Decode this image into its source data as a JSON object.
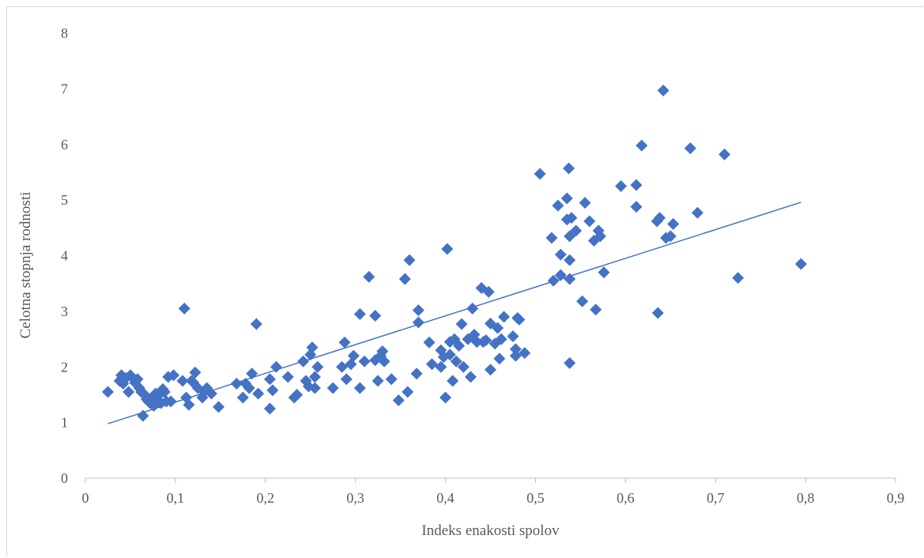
{
  "chart_data": {
    "type": "scatter",
    "title": "",
    "xlabel": "Indeks enakosti spolov",
    "ylabel": "Celotna stopnja rodnosti",
    "xlim": [
      0,
      0.9
    ],
    "ylim": [
      0,
      8
    ],
    "x_ticks": [
      "0",
      "0,1",
      "0,2",
      "0,3",
      "0,4",
      "0,5",
      "0,6",
      "0,7",
      "0,8",
      "0,9"
    ],
    "y_ticks": [
      "0",
      "1",
      "2",
      "3",
      "4",
      "5",
      "6",
      "7",
      "8"
    ],
    "grid": false,
    "legend": "none",
    "marker": "diamond",
    "marker_color": "#4472C4",
    "trendline": {
      "type": "linear",
      "color": "#4472C4",
      "from": [
        0.025,
        0.98
      ],
      "to": [
        0.795,
        4.96
      ]
    },
    "points": [
      [
        0.025,
        1.55
      ],
      [
        0.038,
        1.75
      ],
      [
        0.04,
        1.85
      ],
      [
        0.042,
        1.7
      ],
      [
        0.045,
        1.8
      ],
      [
        0.048,
        1.55
      ],
      [
        0.05,
        1.85
      ],
      [
        0.055,
        1.72
      ],
      [
        0.058,
        1.78
      ],
      [
        0.06,
        1.62
      ],
      [
        0.062,
        1.55
      ],
      [
        0.064,
        1.12
      ],
      [
        0.066,
        1.5
      ],
      [
        0.068,
        1.42
      ],
      [
        0.07,
        1.38
      ],
      [
        0.072,
        1.35
      ],
      [
        0.074,
        1.45
      ],
      [
        0.076,
        1.3
      ],
      [
        0.078,
        1.52
      ],
      [
        0.08,
        1.42
      ],
      [
        0.082,
        1.5
      ],
      [
        0.084,
        1.35
      ],
      [
        0.086,
        1.6
      ],
      [
        0.088,
        1.55
      ],
      [
        0.09,
        1.38
      ],
      [
        0.092,
        1.82
      ],
      [
        0.095,
        1.38
      ],
      [
        0.098,
        1.85
      ],
      [
        0.108,
        1.75
      ],
      [
        0.11,
        3.05
      ],
      [
        0.112,
        1.45
      ],
      [
        0.115,
        1.32
      ],
      [
        0.118,
        1.75
      ],
      [
        0.12,
        1.72
      ],
      [
        0.122,
        1.9
      ],
      [
        0.125,
        1.62
      ],
      [
        0.13,
        1.45
      ],
      [
        0.132,
        1.55
      ],
      [
        0.135,
        1.62
      ],
      [
        0.14,
        1.52
      ],
      [
        0.148,
        1.28
      ],
      [
        0.168,
        1.7
      ],
      [
        0.175,
        1.45
      ],
      [
        0.178,
        1.7
      ],
      [
        0.182,
        1.62
      ],
      [
        0.185,
        1.88
      ],
      [
        0.19,
        2.77
      ],
      [
        0.192,
        1.52
      ],
      [
        0.205,
        1.25
      ],
      [
        0.205,
        1.78
      ],
      [
        0.208,
        1.58
      ],
      [
        0.212,
        2.0
      ],
      [
        0.225,
        1.82
      ],
      [
        0.232,
        1.45
      ],
      [
        0.235,
        1.5
      ],
      [
        0.242,
        2.1
      ],
      [
        0.245,
        1.75
      ],
      [
        0.248,
        1.65
      ],
      [
        0.25,
        2.22
      ],
      [
        0.252,
        2.35
      ],
      [
        0.255,
        1.62
      ],
      [
        0.255,
        1.82
      ],
      [
        0.258,
        2.0
      ],
      [
        0.275,
        1.62
      ],
      [
        0.285,
        2.0
      ],
      [
        0.288,
        2.44
      ],
      [
        0.29,
        1.78
      ],
      [
        0.295,
        2.05
      ],
      [
        0.298,
        2.2
      ],
      [
        0.305,
        1.62
      ],
      [
        0.305,
        2.95
      ],
      [
        0.31,
        2.1
      ],
      [
        0.315,
        3.62
      ],
      [
        0.322,
        2.92
      ],
      [
        0.322,
        2.12
      ],
      [
        0.325,
        1.75
      ],
      [
        0.328,
        2.2
      ],
      [
        0.33,
        2.28
      ],
      [
        0.332,
        2.1
      ],
      [
        0.34,
        1.78
      ],
      [
        0.348,
        1.4
      ],
      [
        0.355,
        3.58
      ],
      [
        0.358,
        1.55
      ],
      [
        0.36,
        3.92
      ],
      [
        0.368,
        1.88
      ],
      [
        0.37,
        3.02
      ],
      [
        0.37,
        2.8
      ],
      [
        0.382,
        2.44
      ],
      [
        0.385,
        2.05
      ],
      [
        0.395,
        2.0
      ],
      [
        0.395,
        2.3
      ],
      [
        0.398,
        2.18
      ],
      [
        0.4,
        1.45
      ],
      [
        0.402,
        4.12
      ],
      [
        0.405,
        2.22
      ],
      [
        0.405,
        2.45
      ],
      [
        0.408,
        1.75
      ],
      [
        0.41,
        2.5
      ],
      [
        0.412,
        2.1
      ],
      [
        0.415,
        2.38
      ],
      [
        0.418,
        2.77
      ],
      [
        0.42,
        2.0
      ],
      [
        0.425,
        2.5
      ],
      [
        0.428,
        1.82
      ],
      [
        0.43,
        3.05
      ],
      [
        0.432,
        2.58
      ],
      [
        0.435,
        2.45
      ],
      [
        0.44,
        3.42
      ],
      [
        0.442,
        2.45
      ],
      [
        0.445,
        2.48
      ],
      [
        0.448,
        3.35
      ],
      [
        0.45,
        1.95
      ],
      [
        0.45,
        2.78
      ],
      [
        0.455,
        2.42
      ],
      [
        0.458,
        2.7
      ],
      [
        0.46,
        2.15
      ],
      [
        0.462,
        2.5
      ],
      [
        0.465,
        2.9
      ],
      [
        0.475,
        2.55
      ],
      [
        0.478,
        2.2
      ],
      [
        0.478,
        2.32
      ],
      [
        0.48,
        2.88
      ],
      [
        0.482,
        2.85
      ],
      [
        0.488,
        2.25
      ],
      [
        0.505,
        5.47
      ],
      [
        0.518,
        4.32
      ],
      [
        0.52,
        3.55
      ],
      [
        0.525,
        4.9
      ],
      [
        0.528,
        4.02
      ],
      [
        0.528,
        3.65
      ],
      [
        0.535,
        4.65
      ],
      [
        0.535,
        5.03
      ],
      [
        0.537,
        5.57
      ],
      [
        0.538,
        4.35
      ],
      [
        0.538,
        2.07
      ],
      [
        0.538,
        3.92
      ],
      [
        0.538,
        3.58
      ],
      [
        0.54,
        4.68
      ],
      [
        0.545,
        4.45
      ],
      [
        0.552,
        3.18
      ],
      [
        0.555,
        4.95
      ],
      [
        0.56,
        4.62
      ],
      [
        0.565,
        4.27
      ],
      [
        0.567,
        3.03
      ],
      [
        0.57,
        4.45
      ],
      [
        0.572,
        4.35
      ],
      [
        0.576,
        3.7
      ],
      [
        0.595,
        5.25
      ],
      [
        0.612,
        5.27
      ],
      [
        0.612,
        4.88
      ],
      [
        0.618,
        5.98
      ],
      [
        0.635,
        4.62
      ],
      [
        0.636,
        2.97
      ],
      [
        0.638,
        4.68
      ],
      [
        0.642,
        6.97
      ],
      [
        0.645,
        4.32
      ],
      [
        0.65,
        4.35
      ],
      [
        0.653,
        4.57
      ],
      [
        0.672,
        5.93
      ],
      [
        0.68,
        4.77
      ],
      [
        0.71,
        5.82
      ],
      [
        0.725,
        3.6
      ],
      [
        0.795,
        3.85
      ]
    ]
  }
}
